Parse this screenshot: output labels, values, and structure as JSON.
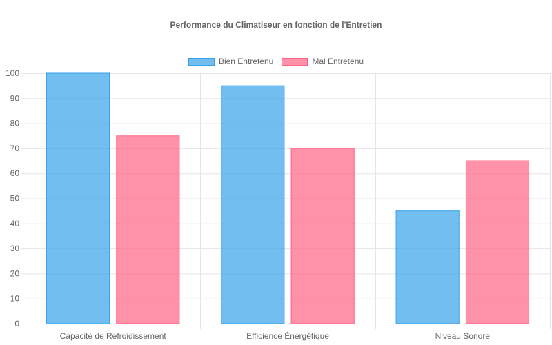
{
  "chart_data": {
    "type": "bar",
    "title": "Performance du Climatiseur en fonction de l'Entretien",
    "categories": [
      "Capacité de Refroidissement",
      "Efficience Énergétique",
      "Niveau Sonore"
    ],
    "series": [
      {
        "name": "Bien Entretenu",
        "values": [
          100,
          95,
          45
        ],
        "color": "#36a2eb",
        "fill": "rgba(54,162,235,0.7)"
      },
      {
        "name": "Mal Entretenu",
        "values": [
          75,
          70,
          65
        ],
        "color": "#ff6384",
        "fill": "rgba(255,99,132,0.7)"
      }
    ],
    "ylim": [
      0,
      100
    ],
    "yticks": [
      0,
      10,
      20,
      30,
      40,
      50,
      60,
      70,
      80,
      90,
      100
    ],
    "xlabel": "",
    "ylabel": "",
    "grid": true,
    "legend_position": "top"
  }
}
